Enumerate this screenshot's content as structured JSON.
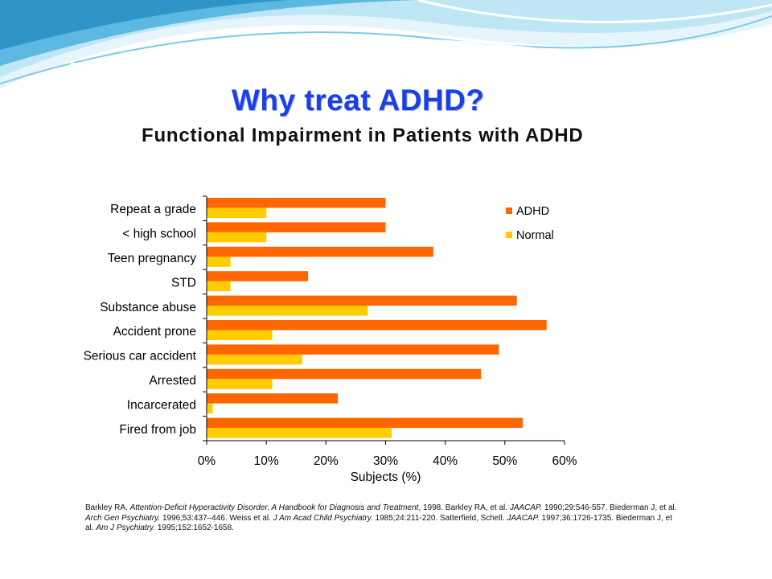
{
  "slide": {
    "title": "Why treat ADHD?",
    "subtitle": "Functional Impairment in Patients with ADHD"
  },
  "references": [
    {
      "t": "Barkley RA. ",
      "i": false
    },
    {
      "t": "Attention-Deficit Hyperactivity Disorder. A Handbook for Diagnosis and Treatment",
      "i": true
    },
    {
      "t": ", 1998. Barkley RA, et al. ",
      "i": false
    },
    {
      "t": "JAACAP.",
      "i": true
    },
    {
      "t": " 1990;29:546-557. Biederman J, et al. ",
      "i": false
    },
    {
      "t": "Arch Gen Psychiatry.",
      "i": true
    },
    {
      "t": " 1996;53:437–446. Weiss et al. ",
      "i": false
    },
    {
      "t": "J Am Acad Child Psychiatry.",
      "i": true
    },
    {
      "t": " 1985;24:211-220. Satterfield, Schell. ",
      "i": false
    },
    {
      "t": "JAACAP.",
      "i": true
    },
    {
      "t": " 1997;36:1726-1735. Biederman J, et al. ",
      "i": false
    },
    {
      "t": "Am J Psychiatry.",
      "i": true
    },
    {
      "t": " 1995;152:1652-1658.",
      "i": false
    }
  ],
  "colors": {
    "adhd": "#ff6600",
    "normal": "#ffcc00",
    "title": "#1a40e6",
    "wave_dark": "#3fa7d6",
    "wave_light": "#bfe6f5"
  },
  "chart_data": {
    "type": "bar",
    "orientation": "horizontal",
    "categories": [
      "Repeat a grade",
      "< high school",
      "Teen pregnancy",
      "STD",
      "Substance abuse",
      "Accident prone",
      "Serious car accident",
      "Arrested",
      "Incarcerated",
      "Fired from job"
    ],
    "series": [
      {
        "name": "ADHD",
        "values": [
          30,
          30,
          38,
          17,
          52,
          57,
          49,
          46,
          22,
          53
        ]
      },
      {
        "name": "Normal",
        "values": [
          10,
          10,
          4,
          4,
          27,
          11,
          16,
          11,
          1,
          31
        ]
      }
    ],
    "xlabel": "Subjects (%)",
    "ylabel": "",
    "xlim": [
      0,
      60
    ],
    "xticks": [
      0,
      10,
      20,
      30,
      40,
      50,
      60
    ],
    "xtick_labels": [
      "0%",
      "10%",
      "20%",
      "30%",
      "40%",
      "50%",
      "60%"
    ],
    "grid": false,
    "legend_position": "top-right"
  }
}
